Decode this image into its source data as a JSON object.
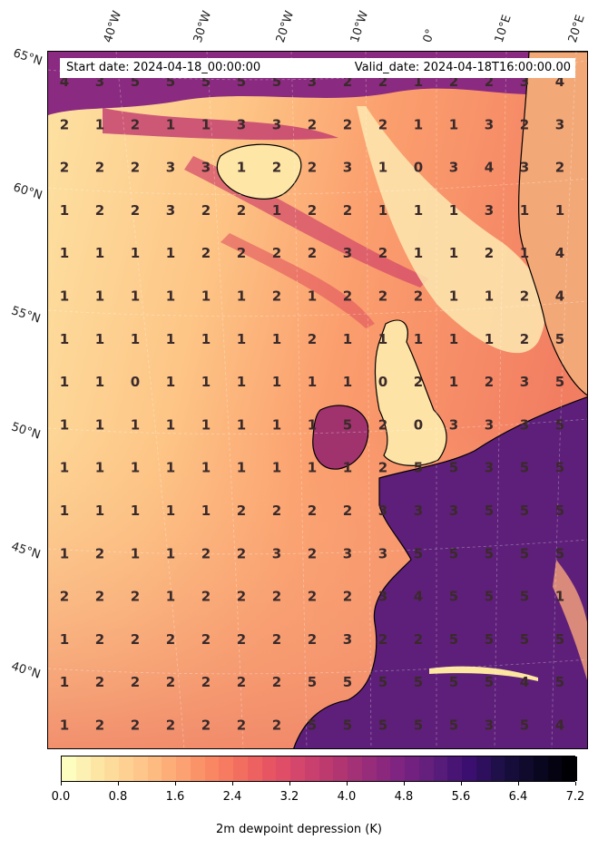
{
  "map": {
    "start_date": "Start date: 2024-04-18_00:00:00",
    "valid_date": "Valid_date: 2024-04-18T16:00:00.00",
    "lat_labels": [
      "65°N",
      "60°N",
      "55°N",
      "50°N",
      "45°N",
      "40°N"
    ],
    "lon_labels": [
      "40°W",
      "30°W",
      "20°W",
      "10°W",
      "0°",
      "10°E",
      "20°E"
    ],
    "grid_values": [
      [
        4,
        3,
        5,
        5,
        5,
        5,
        5,
        3,
        2,
        2,
        1,
        2,
        2,
        3,
        4
      ],
      [
        2,
        1,
        2,
        1,
        1,
        3,
        3,
        2,
        2,
        2,
        1,
        1,
        3,
        2,
        3
      ],
      [
        2,
        2,
        2,
        3,
        3,
        1,
        2,
        2,
        3,
        1,
        0,
        3,
        4,
        3,
        2
      ],
      [
        1,
        2,
        2,
        3,
        2,
        2,
        1,
        2,
        2,
        1,
        1,
        1,
        3,
        1,
        1
      ],
      [
        1,
        1,
        1,
        1,
        2,
        2,
        2,
        2,
        3,
        2,
        1,
        1,
        2,
        1,
        4
      ],
      [
        1,
        1,
        1,
        1,
        1,
        1,
        2,
        1,
        2,
        2,
        2,
        1,
        1,
        2,
        4
      ],
      [
        1,
        1,
        1,
        1,
        1,
        1,
        1,
        2,
        1,
        1,
        1,
        1,
        1,
        2,
        5
      ],
      [
        1,
        1,
        0,
        1,
        1,
        1,
        1,
        1,
        1,
        0,
        2,
        1,
        2,
        3,
        5
      ],
      [
        1,
        1,
        1,
        1,
        1,
        1,
        1,
        1,
        5,
        2,
        0,
        3,
        3,
        3,
        5
      ],
      [
        1,
        1,
        1,
        1,
        1,
        1,
        1,
        1,
        1,
        2,
        5,
        5,
        3,
        5,
        5
      ],
      [
        1,
        1,
        1,
        1,
        1,
        2,
        2,
        2,
        2,
        3,
        3,
        3,
        5,
        5,
        5
      ],
      [
        1,
        2,
        1,
        1,
        2,
        2,
        3,
        2,
        3,
        3,
        5,
        5,
        5,
        5,
        5
      ],
      [
        2,
        2,
        2,
        1,
        2,
        2,
        2,
        2,
        2,
        3,
        4,
        5,
        5,
        5,
        1
      ],
      [
        1,
        2,
        2,
        2,
        2,
        2,
        2,
        2,
        3,
        2,
        2,
        5,
        5,
        5,
        5
      ],
      [
        1,
        2,
        2,
        2,
        2,
        2,
        2,
        5,
        5,
        5,
        5,
        5,
        5,
        4,
        5
      ],
      [
        1,
        2,
        2,
        2,
        2,
        2,
        2,
        5,
        5,
        5,
        5,
        5,
        3,
        5,
        4
      ]
    ]
  },
  "colorbar": {
    "ticks": [
      "0.0",
      "0.8",
      "1.6",
      "2.4",
      "3.2",
      "4.0",
      "4.8",
      "5.6",
      "6.4",
      "7.2"
    ],
    "min": 0.0,
    "max": 7.2,
    "label": "2m dewpoint depression (K)"
  },
  "palette": {
    "low": "#fcfdbf",
    "mid_low": "#fd9e69",
    "mid": "#e85562",
    "mid_high": "#b4376f",
    "high": "#5c1d7a",
    "max": "#000004",
    "coast": "#000000",
    "value_text": "#3a2a2a"
  }
}
